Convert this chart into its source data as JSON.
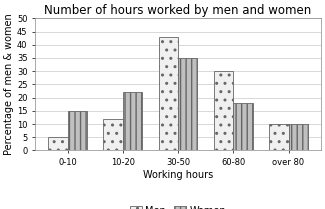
{
  "title": "Number of hours worked by men and women",
  "xlabel": "Working hours",
  "ylabel": "Percentage of men & women",
  "categories": [
    "0-10",
    "10-20",
    "30-50",
    "60-80",
    "over 80"
  ],
  "men_values": [
    5,
    12,
    43,
    30,
    10
  ],
  "women_values": [
    15,
    22,
    35,
    18,
    10
  ],
  "ylim": [
    0,
    50
  ],
  "yticks": [
    0,
    5,
    10,
    15,
    20,
    25,
    30,
    35,
    40,
    45,
    50
  ],
  "men_hatch": "..",
  "women_hatch": "|||",
  "men_facecolor": "#f0f0f0",
  "women_facecolor": "#c0c0c0",
  "bar_edge_color": "#666666",
  "bar_width": 0.35,
  "legend_labels": [
    "Men",
    "Women"
  ],
  "title_fontsize": 8.5,
  "label_fontsize": 7,
  "tick_fontsize": 6
}
